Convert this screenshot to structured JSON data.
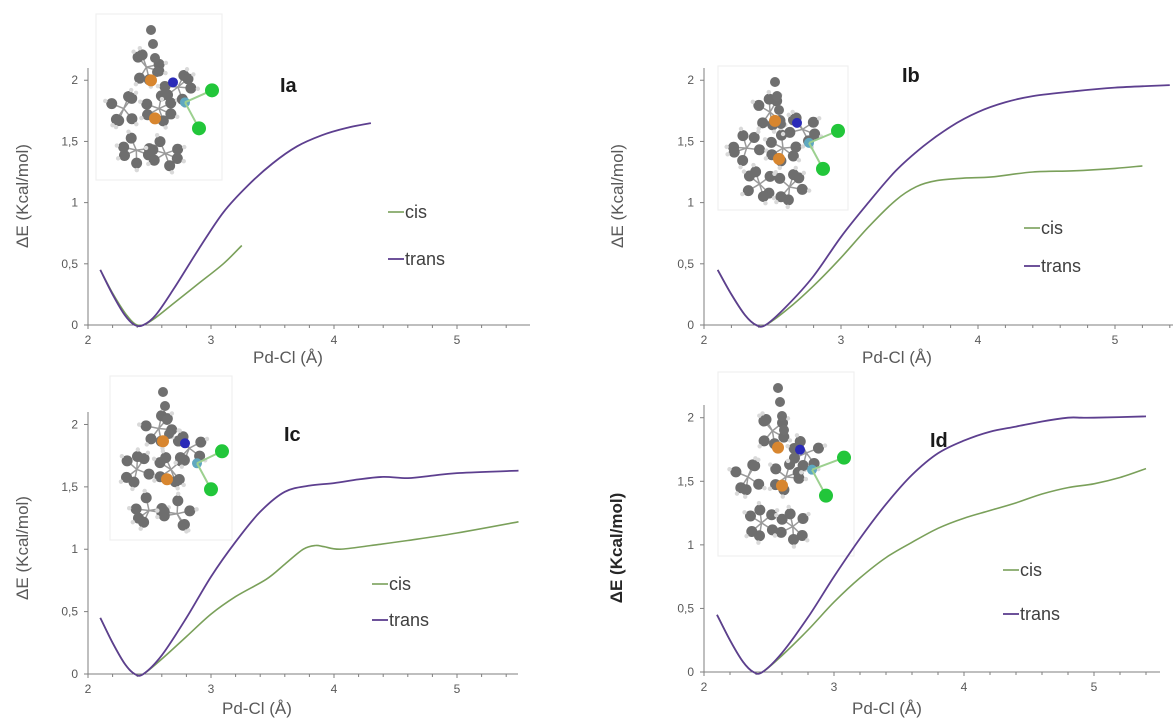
{
  "colors": {
    "cis": "#7aa05a",
    "trans": "#5d3f8f",
    "axis": "#7f7f7f"
  },
  "chart_data": [
    {
      "type": "line",
      "title": "Ia",
      "xlabel": "Pd-Cl (Å)",
      "ylabel": "ΔE (Kcal/mol)",
      "xlim": [
        2,
        5.4
      ],
      "ylim": [
        0,
        2.1
      ],
      "xticks": [
        "2",
        "3",
        "4",
        "5"
      ],
      "yticks": [
        "0",
        "0,5",
        "1",
        "1,5",
        "2"
      ],
      "legend": "right-middle",
      "grid": false,
      "molecule_icon": "pd-complex-molecule-icon",
      "series": [
        {
          "name": "cis",
          "x": [
            2.1,
            2.2,
            2.3,
            2.38,
            2.45,
            2.55,
            2.7,
            2.9,
            3.1,
            3.25
          ],
          "y": [
            0.45,
            0.26,
            0.1,
            0.01,
            0.0,
            0.06,
            0.18,
            0.34,
            0.5,
            0.65
          ]
        },
        {
          "name": "trans",
          "x": [
            2.1,
            2.2,
            2.3,
            2.38,
            2.45,
            2.55,
            2.7,
            2.9,
            3.1,
            3.3,
            3.5,
            3.7,
            3.9,
            4.1,
            4.3
          ],
          "y": [
            0.45,
            0.25,
            0.08,
            0.0,
            0.0,
            0.08,
            0.3,
            0.62,
            0.92,
            1.14,
            1.32,
            1.46,
            1.55,
            1.61,
            1.65
          ]
        }
      ]
    },
    {
      "type": "line",
      "title": "Ib",
      "xlabel": "Pd-Cl (Å)",
      "ylabel": "ΔE (Kcal/mol)",
      "xlim": [
        2,
        5.4
      ],
      "ylim": [
        0,
        2.1
      ],
      "xticks": [
        "2",
        "3",
        "4",
        "5"
      ],
      "yticks": [
        "0",
        "0,5",
        "1",
        "1,5",
        "2"
      ],
      "legend": "right-middle",
      "grid": false,
      "molecule_icon": "pd-complex-molecule-icon",
      "series": [
        {
          "name": "cis",
          "x": [
            2.1,
            2.2,
            2.3,
            2.38,
            2.45,
            2.6,
            2.8,
            3.0,
            3.2,
            3.4,
            3.55,
            3.7,
            3.9,
            4.1,
            4.4,
            4.7,
            5.0,
            5.2
          ],
          "y": [
            0.45,
            0.25,
            0.08,
            0.0,
            0.0,
            0.12,
            0.32,
            0.55,
            0.8,
            1.02,
            1.13,
            1.18,
            1.2,
            1.21,
            1.25,
            1.26,
            1.28,
            1.3
          ]
        },
        {
          "name": "trans",
          "x": [
            2.1,
            2.2,
            2.3,
            2.38,
            2.45,
            2.6,
            2.8,
            3.0,
            3.2,
            3.4,
            3.6,
            3.8,
            4.0,
            4.2,
            4.4,
            4.7,
            5.0,
            5.4
          ],
          "y": [
            0.45,
            0.25,
            0.08,
            0.0,
            0.0,
            0.15,
            0.4,
            0.72,
            1.0,
            1.26,
            1.46,
            1.62,
            1.74,
            1.82,
            1.87,
            1.91,
            1.94,
            1.96
          ]
        }
      ]
    },
    {
      "type": "line",
      "title": "Ic",
      "xlabel": "Pd-Cl (Å)",
      "ylabel": "ΔE (Kcal/mol)",
      "xlim": [
        2,
        5.5
      ],
      "ylim": [
        0,
        2.1
      ],
      "xticks": [
        "2",
        "3",
        "4",
        "5"
      ],
      "yticks": [
        "0",
        "0,5",
        "1",
        "1,5",
        "2"
      ],
      "legend": "right-middle",
      "grid": false,
      "molecule_icon": "pd-complex-molecule-icon",
      "series": [
        {
          "name": "cis",
          "x": [
            2.1,
            2.2,
            2.3,
            2.38,
            2.45,
            2.6,
            2.8,
            3.0,
            3.2,
            3.45,
            3.6,
            3.75,
            3.85,
            3.92,
            4.05,
            4.3,
            4.6,
            5.0,
            5.5
          ],
          "y": [
            0.45,
            0.25,
            0.08,
            0.0,
            0.0,
            0.12,
            0.3,
            0.48,
            0.62,
            0.76,
            0.88,
            1.0,
            1.03,
            1.02,
            1.0,
            1.03,
            1.07,
            1.13,
            1.22
          ]
        },
        {
          "name": "trans",
          "x": [
            2.1,
            2.2,
            2.3,
            2.38,
            2.45,
            2.6,
            2.8,
            3.0,
            3.2,
            3.4,
            3.6,
            3.8,
            4.0,
            4.2,
            4.4,
            4.6,
            4.8,
            5.0,
            5.5
          ],
          "y": [
            0.45,
            0.25,
            0.08,
            0.0,
            0.0,
            0.15,
            0.45,
            0.78,
            1.06,
            1.3,
            1.46,
            1.51,
            1.53,
            1.56,
            1.58,
            1.57,
            1.59,
            1.61,
            1.63
          ]
        }
      ]
    },
    {
      "type": "line",
      "title": "Id",
      "xlabel": "Pd-Cl (Å)",
      "ylabel": "ΔE (Kcal/mol)",
      "xlim": [
        2,
        5.4
      ],
      "ylim": [
        0,
        2.1
      ],
      "xticks": [
        "2",
        "3",
        "4",
        "5"
      ],
      "yticks": [
        "0",
        "0,5",
        "1",
        "1,5",
        "2"
      ],
      "legend": "right-middle",
      "grid": false,
      "molecule_icon": "pd-complex-molecule-icon",
      "series": [
        {
          "name": "cis",
          "x": [
            2.1,
            2.2,
            2.3,
            2.38,
            2.45,
            2.6,
            2.8,
            3.0,
            3.2,
            3.4,
            3.6,
            3.8,
            4.0,
            4.2,
            4.4,
            4.6,
            4.8,
            5.0,
            5.2,
            5.4
          ],
          "y": [
            0.45,
            0.25,
            0.08,
            0.0,
            0.0,
            0.13,
            0.33,
            0.55,
            0.74,
            0.9,
            1.02,
            1.13,
            1.21,
            1.27,
            1.33,
            1.4,
            1.45,
            1.48,
            1.53,
            1.6
          ]
        },
        {
          "name": "trans",
          "x": [
            2.1,
            2.2,
            2.3,
            2.38,
            2.45,
            2.6,
            2.8,
            3.0,
            3.2,
            3.4,
            3.6,
            3.8,
            4.0,
            4.2,
            4.4,
            4.6,
            4.8,
            4.9,
            5.0,
            5.4
          ],
          "y": [
            0.45,
            0.25,
            0.08,
            0.0,
            0.0,
            0.15,
            0.43,
            0.75,
            1.05,
            1.32,
            1.55,
            1.72,
            1.82,
            1.89,
            1.93,
            1.97,
            2.0,
            2.0,
            2.0,
            2.01
          ]
        }
      ]
    }
  ]
}
